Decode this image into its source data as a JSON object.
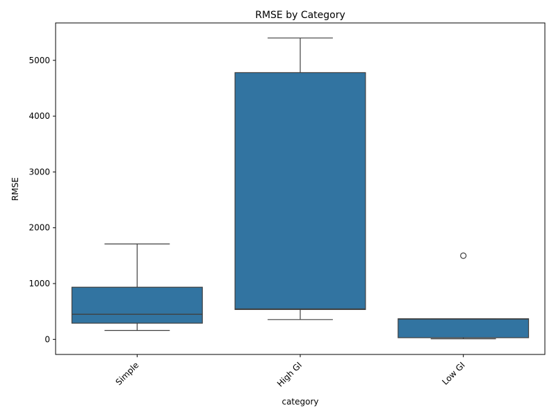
{
  "chart_data": {
    "type": "box",
    "title": "RMSE by Category",
    "xlabel": "category",
    "ylabel": "RMSE",
    "ylim": [
      -270,
      5670
    ],
    "yticks": [
      0,
      1000,
      2000,
      3000,
      4000,
      5000
    ],
    "xtick_rotation": 45,
    "grid": false,
    "legend": "none",
    "color": "#3274a1",
    "edge_color": "#3f3f3f",
    "categories": [
      "Simple",
      "High GI",
      "Low GI"
    ],
    "boxes": [
      {
        "category": "Simple",
        "whisker_low": 160,
        "q1": 290,
        "median": 450,
        "q3": 935,
        "whisker_high": 1710,
        "outliers": []
      },
      {
        "category": "High GI",
        "whisker_low": 355,
        "q1": 535,
        "median": 545,
        "q3": 4780,
        "whisker_high": 5400,
        "outliers": []
      },
      {
        "category": "Low GI",
        "whisker_low": 10,
        "q1": 30,
        "median": 365,
        "q3": 370,
        "whisker_high": 370,
        "outliers": [
          1500
        ]
      }
    ]
  }
}
